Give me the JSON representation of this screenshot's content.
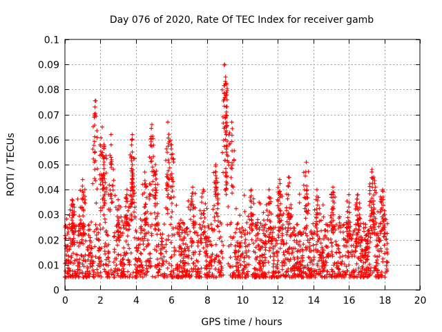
{
  "chart_data": {
    "type": "scatter",
    "title": "Day 076 of 2020, Rate Of TEC Index for receiver gamb",
    "xlabel": "GPS time / hours",
    "ylabel": "ROTI / TECUs",
    "xlim": [
      0,
      20
    ],
    "ylim": [
      0,
      0.1
    ],
    "xticks": [
      "0",
      "2",
      "4",
      "6",
      "8",
      "10",
      "12",
      "14",
      "16",
      "18",
      "20"
    ],
    "yticks": [
      "0",
      "0.01",
      "0.02",
      "0.03",
      "0.04",
      "0.05",
      "0.06",
      "0.07",
      "0.08",
      "0.09",
      "0.1"
    ],
    "grid": true,
    "marker": "+",
    "series_color": "#ff0000",
    "data_x_range_hours": [
      0,
      18.2
    ],
    "series": [
      {
        "name": "ROTI",
        "note": "dense cloud of samples mostly between 0.005 and 0.03 TECU/s over 0-18.2 h; notable peaks listed",
        "peaks": [
          {
            "x": 0.4,
            "y": 0.036
          },
          {
            "x": 1.0,
            "y": 0.044
          },
          {
            "x": 1.7,
            "y": 0.0755
          },
          {
            "x": 2.1,
            "y": 0.065
          },
          {
            "x": 2.2,
            "y": 0.058
          },
          {
            "x": 2.6,
            "y": 0.062
          },
          {
            "x": 3.0,
            "y": 0.036
          },
          {
            "x": 3.5,
            "y": 0.04
          },
          {
            "x": 3.8,
            "y": 0.062
          },
          {
            "x": 3.8,
            "y": 0.05
          },
          {
            "x": 4.5,
            "y": 0.047
          },
          {
            "x": 4.9,
            "y": 0.066
          },
          {
            "x": 5.1,
            "y": 0.05
          },
          {
            "x": 5.8,
            "y": 0.067
          },
          {
            "x": 6.0,
            "y": 0.058
          },
          {
            "x": 7.2,
            "y": 0.041
          },
          {
            "x": 7.8,
            "y": 0.04
          },
          {
            "x": 8.5,
            "y": 0.05
          },
          {
            "x": 9.0,
            "y": 0.09
          },
          {
            "x": 9.05,
            "y": 0.085
          },
          {
            "x": 9.1,
            "y": 0.082
          },
          {
            "x": 9.1,
            "y": 0.071
          },
          {
            "x": 9.4,
            "y": 0.067
          },
          {
            "x": 9.1,
            "y": 0.055
          },
          {
            "x": 10.5,
            "y": 0.04
          },
          {
            "x": 11.5,
            "y": 0.04
          },
          {
            "x": 12.1,
            "y": 0.044
          },
          {
            "x": 12.6,
            "y": 0.045
          },
          {
            "x": 13.6,
            "y": 0.051
          },
          {
            "x": 14.2,
            "y": 0.04
          },
          {
            "x": 15.1,
            "y": 0.041
          },
          {
            "x": 16.0,
            "y": 0.038
          },
          {
            "x": 16.5,
            "y": 0.038
          },
          {
            "x": 17.3,
            "y": 0.048
          },
          {
            "x": 17.4,
            "y": 0.045
          },
          {
            "x": 17.9,
            "y": 0.04
          }
        ]
      }
    ]
  }
}
